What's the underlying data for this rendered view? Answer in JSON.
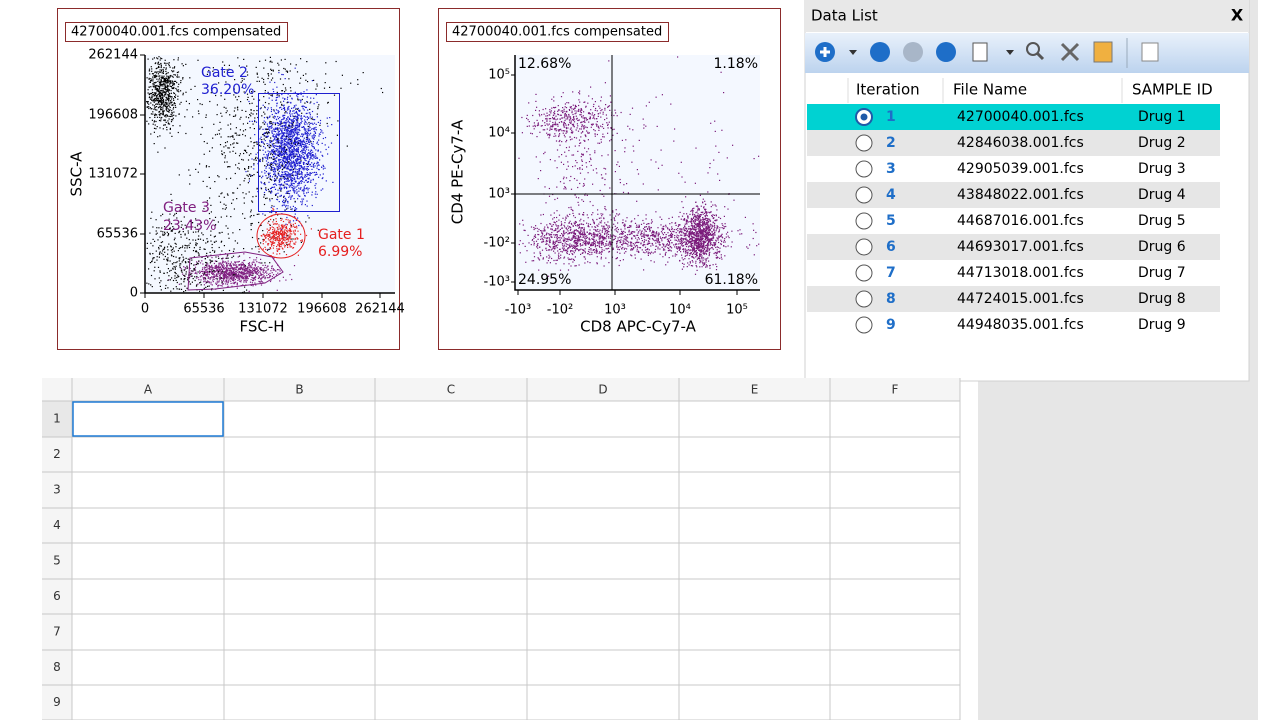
{
  "plots": [
    {
      "title": "42700040.001.fcs compensated",
      "y_label": "SSC-A",
      "x_label": "FSC-H",
      "y_ticks": [
        "262144",
        "196608",
        "131072",
        "65536",
        "0"
      ],
      "x_ticks": [
        "0",
        "65536",
        "131072",
        "196608",
        "262144"
      ],
      "gates": [
        {
          "name": "Gate 2",
          "percent": "36.20%"
        },
        {
          "name": "Gate 3",
          "percent": "23.43%"
        },
        {
          "name": "Gate 1",
          "percent": "6.99%"
        }
      ]
    },
    {
      "title": "42700040.001.fcs compensated",
      "y_label": "CD4 PE-Cy7-A",
      "x_label": "CD8 APC-Cy7-A",
      "y_ticks": [
        "10⁵",
        "10⁴",
        "10³",
        "-10²",
        "-10³"
      ],
      "x_ticks": [
        "-10³",
        "-10²",
        "10³",
        "10⁴",
        "10⁵"
      ],
      "quadrants": [
        "12.68%",
        "1.18%",
        "24.95%",
        "61.18%"
      ]
    }
  ],
  "data_list": {
    "title": "Data List",
    "close": "X",
    "headers": [
      "Iteration",
      "File Name",
      "SAMPLE ID"
    ],
    "rows": [
      [
        "1",
        "42700040.001.fcs",
        "Drug 1"
      ],
      [
        "2",
        "42846038.001.fcs",
        "Drug 2"
      ],
      [
        "3",
        "42905039.001.fcs",
        "Drug 3"
      ],
      [
        "4",
        "43848022.001.fcs",
        "Drug 4"
      ],
      [
        "5",
        "44687016.001.fcs",
        "Drug 5"
      ],
      [
        "6",
        "44693017.001.fcs",
        "Drug 6"
      ],
      [
        "7",
        "44713018.001.fcs",
        "Drug 7"
      ],
      [
        "8",
        "44724015.001.fcs",
        "Drug 8"
      ],
      [
        "9",
        "44948035.001.fcs",
        "Drug 9"
      ]
    ]
  },
  "sheet": {
    "columns": [
      "A",
      "B",
      "C",
      "D",
      "E",
      "F"
    ],
    "rows": [
      "1",
      "2",
      "3",
      "4",
      "5",
      "6",
      "7",
      "8",
      "9"
    ]
  }
}
